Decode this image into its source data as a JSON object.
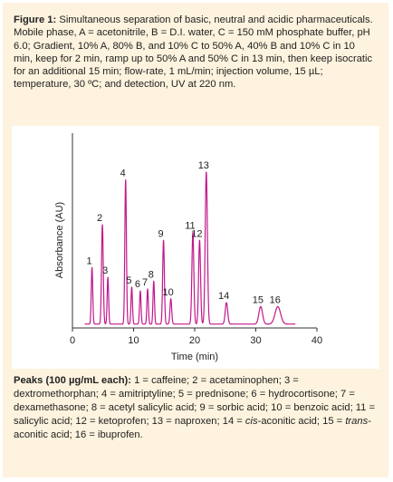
{
  "caption": {
    "figure_label": "Figure 1:",
    "text": " Simultaneous separation of basic, neutral and acidic pharmaceuticals. Mobile phase, A = acetonitrile, B = D.I. water, C = 150 mM phosphate buffer, pH 6.0; Gradient, 10% A, 80% B, and 10% C to 50% A, 40% B and 10% C in 10 min, keep for 2 min, ramp up to 50% A and 50% C in 13 min, then keep isocratic for an additional 15 min; flow-rate, 1 mL/min; injection volume, 15 µL; temperature, 30 ºC; and detection, UV at 220 nm."
  },
  "legend": {
    "heading": "Peaks (100 µg/mL each):",
    "parts": [
      {
        "t": " 1 = caffeine; 2 = acetaminophen; 3 = dextromethorphan; 4 = amitriptyline; 5 = prednisone; 6 = hydrocortisone; 7 = dexamethasone; 8 = acetyl salicylic acid; 9 = sorbic acid; 10 = benzoic acid; 11 = salicylic acid; 12 = ketoprofen; 13 = naproxen; 14 = ",
        "i": false
      },
      {
        "t": "cis",
        "i": true
      },
      {
        "t": "-aconitic acid; 15 = ",
        "i": false
      },
      {
        "t": "trans",
        "i": true
      },
      {
        "t": "-aconitic acid; 16 = ibuprofen.",
        "i": false
      }
    ]
  },
  "chart_data": {
    "type": "line",
    "title": "",
    "xlabel": "Time (min)",
    "ylabel": "Absorbance (AU)",
    "xlim": [
      0,
      40
    ],
    "ylim": [
      0,
      100
    ],
    "xticks": [
      0,
      10,
      20,
      30,
      40
    ],
    "grid": false,
    "line_color": "#c2188c",
    "baseline": 2,
    "peaks": [
      {
        "label": "1",
        "x": 3.2,
        "y": 31,
        "w": 0.12
      },
      {
        "label": "2",
        "x": 4.9,
        "y": 53,
        "w": 0.14
      },
      {
        "label": "3",
        "x": 5.8,
        "y": 26,
        "w": 0.12
      },
      {
        "label": "4",
        "x": 8.7,
        "y": 76,
        "w": 0.13
      },
      {
        "label": "5",
        "x": 9.7,
        "y": 21,
        "w": 0.12
      },
      {
        "label": "6",
        "x": 11.1,
        "y": 19,
        "w": 0.12
      },
      {
        "label": "7",
        "x": 12.3,
        "y": 20,
        "w": 0.12
      },
      {
        "label": "8",
        "x": 13.3,
        "y": 24,
        "w": 0.12
      },
      {
        "label": "9",
        "x": 14.9,
        "y": 45,
        "w": 0.14
      },
      {
        "label": "10",
        "x": 16.1,
        "y": 15,
        "w": 0.14
      },
      {
        "label": "11",
        "x": 19.7,
        "y": 49,
        "w": 0.16
      },
      {
        "label": "12",
        "x": 20.8,
        "y": 45,
        "w": 0.16
      },
      {
        "label": "13",
        "x": 21.9,
        "y": 80,
        "w": 0.18
      },
      {
        "label": "14",
        "x": 25.2,
        "y": 13,
        "w": 0.2
      },
      {
        "label": "15",
        "x": 30.8,
        "y": 11,
        "w": 0.3
      },
      {
        "label": "16",
        "x": 33.6,
        "y": 11,
        "w": 0.45
      }
    ]
  }
}
